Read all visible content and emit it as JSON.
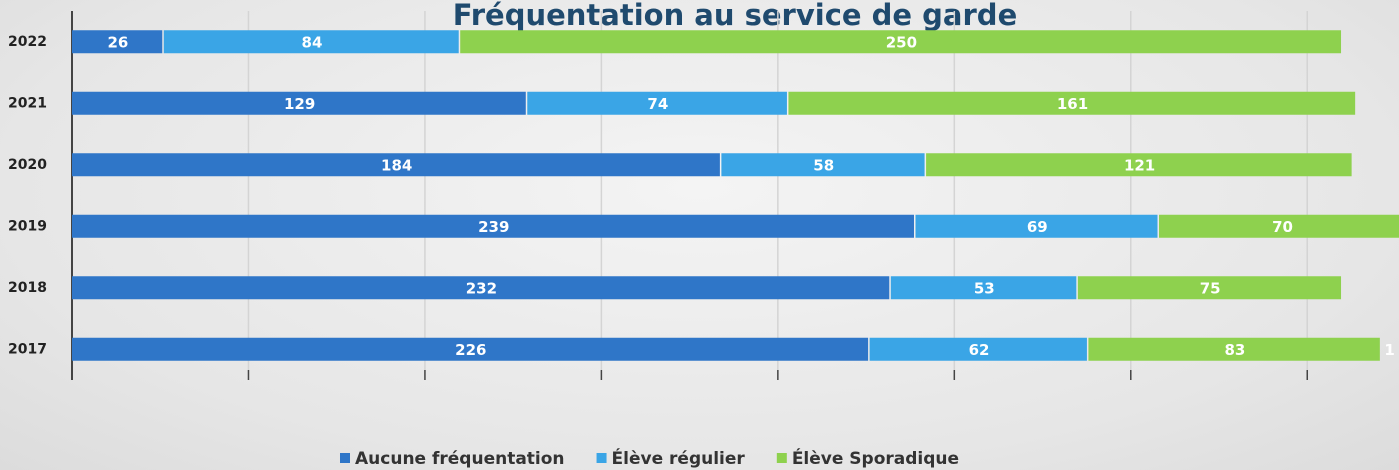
{
  "chart_data": {
    "type": "stacked_barh",
    "title": "Fréquentation au service de garde",
    "categories": [
      "2022",
      "2021",
      "2020",
      "2019",
      "2018",
      "2017"
    ],
    "series": [
      {
        "name": "Aucune fréquentation",
        "color": "#2f76c8",
        "values": [
          26,
          129,
          184,
          239,
          232,
          226
        ]
      },
      {
        "name": "Élève régulier",
        "color": "#3aa5e6",
        "values": [
          84,
          74,
          58,
          69,
          53,
          62
        ]
      },
      {
        "name": "Élève Sporadique",
        "color": "#8ed14e",
        "values": [
          250,
          161,
          121,
          70,
          75,
          83
        ]
      }
    ],
    "annotation": "1",
    "xlim": [
      0,
      376
    ],
    "xticks": [
      0,
      50,
      100,
      150,
      200,
      250,
      300,
      350
    ],
    "grid": true,
    "legend": "bottom"
  }
}
